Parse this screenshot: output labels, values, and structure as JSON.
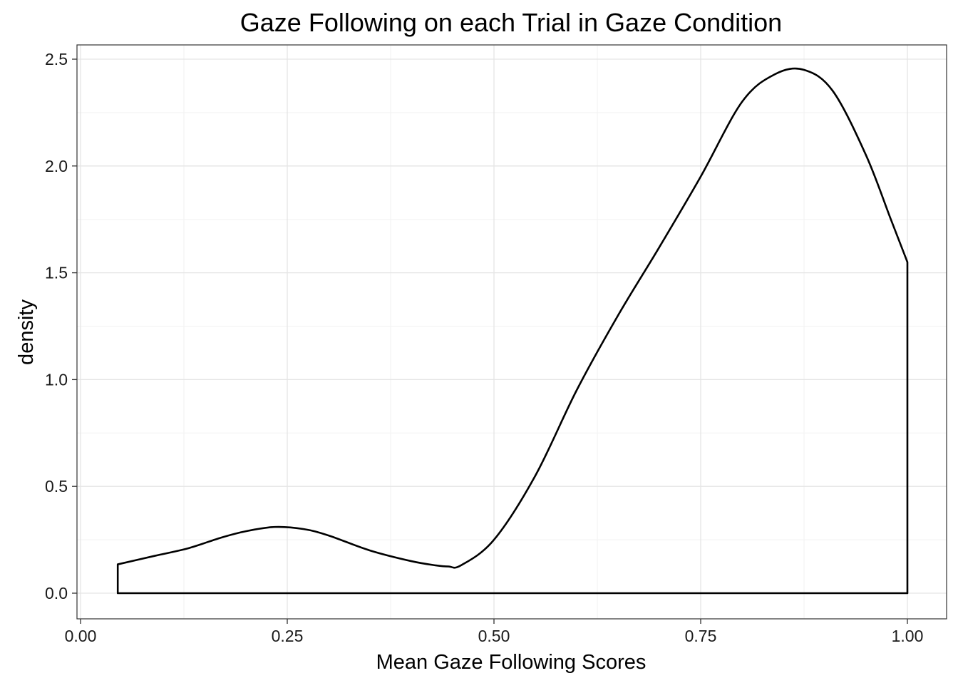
{
  "chart_data": {
    "type": "area",
    "title": "Gaze Following on each Trial in Gaze Condition",
    "xlabel": "Mean Gaze Following Scores",
    "ylabel": "density",
    "xlim": [
      0.0,
      1.0
    ],
    "ylim": [
      0.0,
      2.5
    ],
    "x_ticks": [
      "0.00",
      "0.25",
      "0.50",
      "0.75",
      "1.00"
    ],
    "y_ticks": [
      "0.0",
      "0.5",
      "1.0",
      "1.5",
      "2.0",
      "2.5"
    ],
    "grid": true,
    "fill": "none",
    "line_color": "#000000",
    "series": [
      {
        "x": [
          0.045,
          0.09,
          0.13,
          0.17,
          0.2,
          0.235,
          0.27,
          0.3,
          0.35,
          0.4,
          0.43,
          0.445,
          0.46,
          0.5,
          0.55,
          0.6,
          0.65,
          0.7,
          0.75,
          0.8,
          0.84,
          0.875,
          0.91,
          0.95,
          0.98,
          1.0
        ],
        "y": [
          0.135,
          0.175,
          0.21,
          0.26,
          0.29,
          0.31,
          0.3,
          0.27,
          0.2,
          0.15,
          0.13,
          0.125,
          0.13,
          0.25,
          0.55,
          0.95,
          1.3,
          1.62,
          1.95,
          2.3,
          2.43,
          2.45,
          2.35,
          2.05,
          1.75,
          1.55
        ]
      }
    ]
  }
}
